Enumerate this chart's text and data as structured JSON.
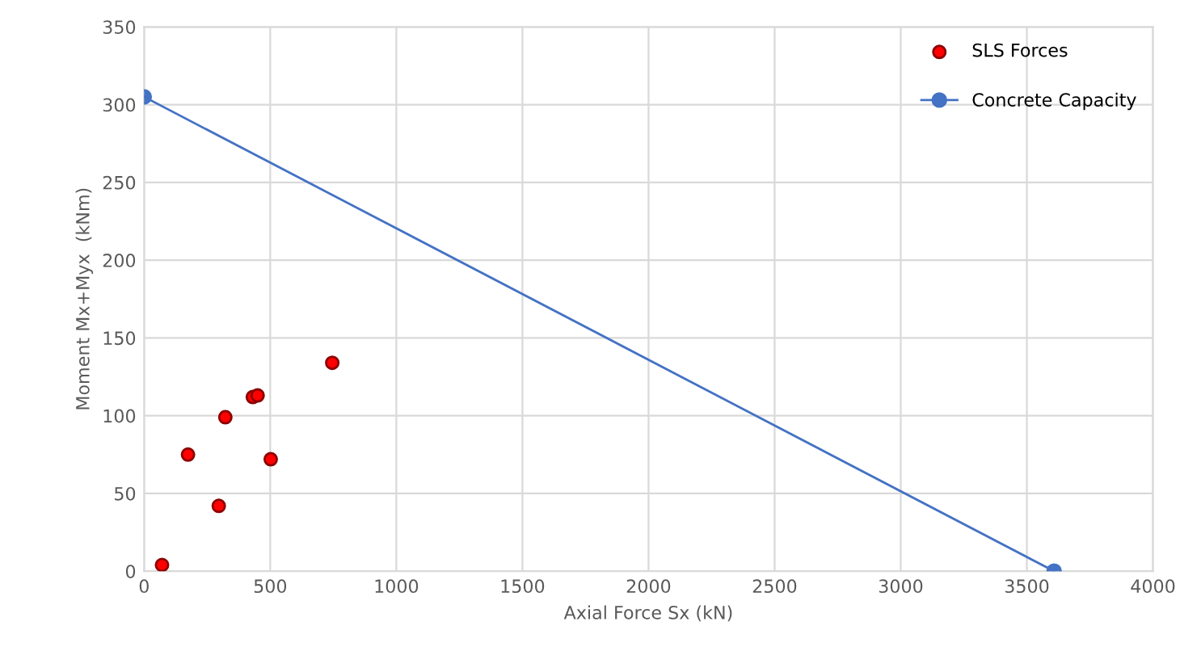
{
  "chart_data": {
    "type": "scatter",
    "xlabel": "Axial Force Sx (kN)",
    "ylabel": "Moment Mx+Myx  (kNm)",
    "series": [
      {
        "name": "SLS Forces",
        "color": "#ff0000",
        "x": [
          71,
          174,
          296,
          322,
          431,
          450,
          502,
          746
        ],
        "values": [
          4,
          75,
          42,
          99,
          112,
          113,
          72,
          134
        ]
      },
      {
        "name": "Concrete Capacity",
        "type": "line",
        "color": "#4472c4",
        "marker": "circle",
        "x": [
          0,
          3608
        ],
        "values": [
          305,
          0
        ]
      }
    ],
    "xlim": [
      0,
      4000
    ],
    "xticks": [
      0,
      500,
      1000,
      1500,
      2000,
      2500,
      3000,
      3500,
      4000
    ],
    "ylim": [
      0,
      350
    ],
    "yticks": [
      0,
      50,
      100,
      150,
      200,
      250,
      300,
      350
    ],
    "grid": true,
    "legend": "top right"
  }
}
